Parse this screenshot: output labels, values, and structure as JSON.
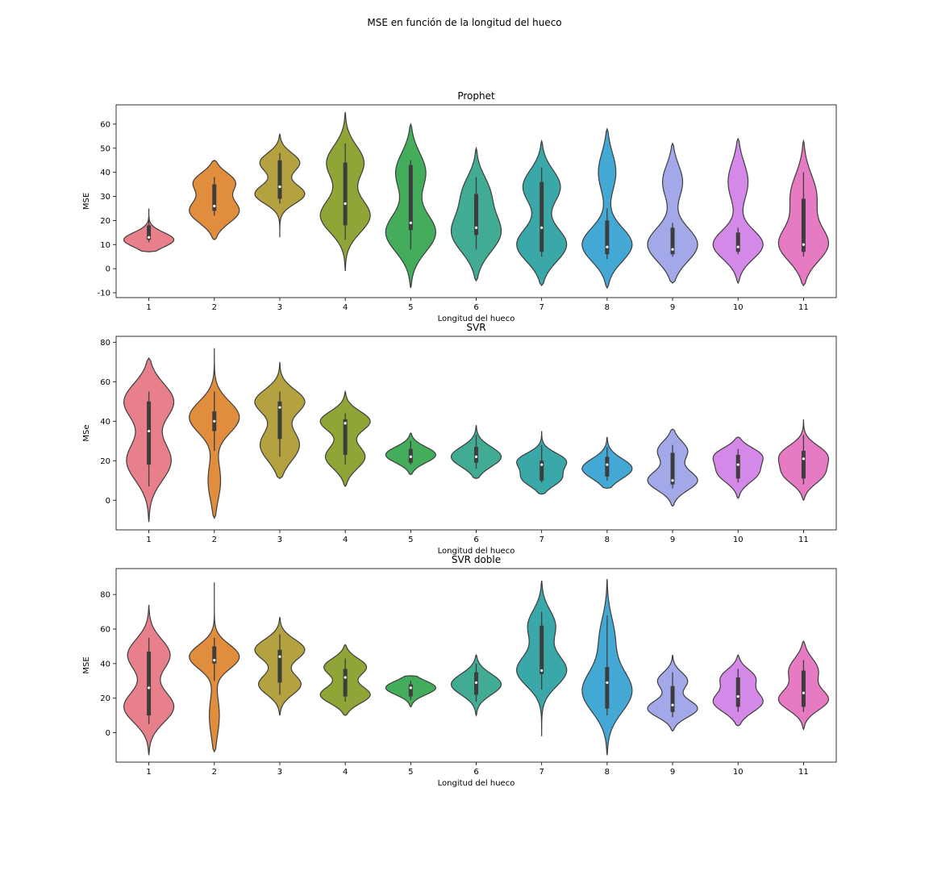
{
  "figure": {
    "suptitle": "MSE en función de la longitud del hueco"
  },
  "chart_data": [
    {
      "type": "violin",
      "title": "Prophet",
      "xlabel": "Longitud del hueco",
      "ylabel": "MSE",
      "ylim": [
        -12,
        68
      ],
      "yticks": [
        -10,
        0,
        10,
        20,
        30,
        40,
        50,
        60
      ],
      "categories": [
        "1",
        "2",
        "3",
        "4",
        "5",
        "6",
        "7",
        "8",
        "9",
        "10",
        "11"
      ],
      "colors": [
        "#e8808b",
        "#e08e3d",
        "#b3a23f",
        "#90a537",
        "#43ad5b",
        "#41ab93",
        "#3aa7a8",
        "#43a8d4",
        "#a3a8e8",
        "#d489e8",
        "#e67ac3"
      ],
      "violins": [
        {
          "min": 7,
          "max": 25,
          "q1": 12,
          "median": 13,
          "q3": 18,
          "wlo": 11,
          "whi": 21,
          "modes": [
            [
              12,
              1,
              3
            ]
          ]
        },
        {
          "min": 12,
          "max": 45,
          "q1": 24,
          "median": 26,
          "q3": 35,
          "wlo": 22,
          "whi": 38,
          "modes": [
            [
              24,
              1,
              5
            ],
            [
              36,
              0.8,
              4
            ]
          ]
        },
        {
          "min": 13,
          "max": 56,
          "q1": 29,
          "median": 34,
          "q3": 45,
          "wlo": 27,
          "whi": 48,
          "modes": [
            [
              31,
              1,
              4
            ],
            [
              44,
              0.8,
              4
            ]
          ]
        },
        {
          "min": -1,
          "max": 65,
          "q1": 18,
          "median": 27,
          "q3": 44,
          "wlo": 12,
          "whi": 52,
          "modes": [
            [
              22,
              1,
              7
            ],
            [
              44,
              0.75,
              7
            ]
          ]
        },
        {
          "min": -8,
          "max": 60,
          "q1": 16,
          "median": 19,
          "q3": 43,
          "wlo": 8,
          "whi": 45,
          "modes": [
            [
              15,
              1,
              8
            ],
            [
              40,
              0.6,
              8
            ]
          ]
        },
        {
          "min": -5,
          "max": 50,
          "q1": 14,
          "median": 17,
          "q3": 31,
          "wlo": 8,
          "whi": 38,
          "modes": [
            [
              15,
              1,
              8
            ],
            [
              32,
              0.5,
              7
            ]
          ]
        },
        {
          "min": -7,
          "max": 53,
          "q1": 7,
          "median": 17,
          "q3": 36,
          "wlo": 5,
          "whi": 42,
          "modes": [
            [
              10,
              1,
              7
            ],
            [
              34,
              0.75,
              7
            ]
          ]
        },
        {
          "min": -8,
          "max": 58,
          "q1": 6,
          "median": 9,
          "q3": 20,
          "wlo": 4,
          "whi": 25,
          "modes": [
            [
              10,
              1,
              7
            ],
            [
              40,
              0.35,
              8
            ]
          ]
        },
        {
          "min": -6,
          "max": 52,
          "q1": 6,
          "median": 8,
          "q3": 17,
          "wlo": 5,
          "whi": 19,
          "modes": [
            [
              10,
              1,
              7
            ],
            [
              36,
              0.4,
              7
            ]
          ]
        },
        {
          "min": -6,
          "max": 54,
          "q1": 7,
          "median": 9,
          "q3": 15,
          "wlo": 6,
          "whi": 17,
          "modes": [
            [
              10,
              1,
              6
            ],
            [
              36,
              0.4,
              8
            ]
          ]
        },
        {
          "min": -7,
          "max": 53,
          "q1": 7,
          "median": 10,
          "q3": 29,
          "wlo": 5,
          "whi": 40,
          "modes": [
            [
              10,
              1,
              7
            ],
            [
              30,
              0.55,
              9
            ]
          ]
        }
      ]
    },
    {
      "type": "violin",
      "title": "SVR",
      "xlabel": "Longitud del hueco",
      "ylabel": "MSe",
      "ylim": [
        -15,
        83
      ],
      "yticks": [
        0,
        20,
        40,
        60,
        80
      ],
      "categories": [
        "1",
        "2",
        "3",
        "4",
        "5",
        "6",
        "7",
        "8",
        "9",
        "10",
        "11"
      ],
      "colors": [
        "#e8808b",
        "#e08e3d",
        "#b3a23f",
        "#90a537",
        "#43ad5b",
        "#41ab93",
        "#3aa7a8",
        "#43a8d4",
        "#a3a8e8",
        "#d489e8",
        "#e67ac3"
      ],
      "violins": [
        {
          "min": -11,
          "max": 72,
          "q1": 18,
          "median": 35,
          "q3": 50,
          "wlo": 7,
          "whi": 55,
          "modes": [
            [
              20,
              0.9,
              10
            ],
            [
              50,
              1,
              9
            ]
          ]
        },
        {
          "min": -9,
          "max": 77,
          "q1": 35,
          "median": 40,
          "q3": 45,
          "wlo": 25,
          "whi": 55,
          "modes": [
            [
              42,
              1,
              8
            ],
            [
              10,
              0.25,
              10
            ]
          ]
        },
        {
          "min": 11,
          "max": 70,
          "q1": 31,
          "median": 47,
          "q3": 50,
          "wlo": 22,
          "whi": 55,
          "modes": [
            [
              28,
              0.8,
              8
            ],
            [
              50,
              1,
              6
            ]
          ]
        },
        {
          "min": 7,
          "max": 55,
          "q1": 23,
          "median": 39,
          "q3": 41,
          "wlo": 18,
          "whi": 44,
          "modes": [
            [
              22,
              0.8,
              6
            ],
            [
              40,
              1,
              5
            ]
          ]
        },
        {
          "min": 13,
          "max": 34,
          "q1": 19,
          "median": 22,
          "q3": 26,
          "wlo": 18,
          "whi": 30,
          "modes": [
            [
              23,
              1,
              4
            ]
          ]
        },
        {
          "min": 11,
          "max": 38,
          "q1": 19,
          "median": 22,
          "q3": 27,
          "wlo": 16,
          "whi": 33,
          "modes": [
            [
              22,
              1,
              5
            ]
          ]
        },
        {
          "min": 3,
          "max": 35,
          "q1": 10,
          "median": 18,
          "q3": 20,
          "wlo": 9,
          "whi": 28,
          "modes": [
            [
              11,
              0.8,
              4
            ],
            [
              20,
              1,
              4
            ]
          ]
        },
        {
          "min": 6,
          "max": 32,
          "q1": 12,
          "median": 18,
          "q3": 22,
          "wlo": 10,
          "whi": 27,
          "modes": [
            [
              16,
              1,
              5
            ]
          ]
        },
        {
          "min": -3,
          "max": 36,
          "q1": 8,
          "median": 10,
          "q3": 24,
          "wlo": 6,
          "whi": 28,
          "modes": [
            [
              10,
              1,
              5
            ],
            [
              25,
              0.6,
              5
            ]
          ]
        },
        {
          "min": 1,
          "max": 32,
          "q1": 11,
          "median": 18,
          "q3": 23,
          "wlo": 9,
          "whi": 26,
          "modes": [
            [
              14,
              0.9,
              5
            ],
            [
              23,
              0.9,
              4
            ]
          ]
        },
        {
          "min": 0,
          "max": 41,
          "q1": 11,
          "median": 21,
          "q3": 25,
          "wlo": 8,
          "whi": 33,
          "modes": [
            [
              13,
              0.85,
              5
            ],
            [
              23,
              1,
              5
            ]
          ]
        }
      ]
    },
    {
      "type": "violin",
      "title": "SVR doble",
      "xlabel": "Longitud del hueco",
      "ylabel": "MSE",
      "ylim": [
        -17,
        95
      ],
      "yticks": [
        0,
        20,
        40,
        60,
        80
      ],
      "categories": [
        "1",
        "2",
        "3",
        "4",
        "5",
        "6",
        "7",
        "8",
        "9",
        "10",
        "11"
      ],
      "colors": [
        "#e8808b",
        "#e08e3d",
        "#b3a23f",
        "#90a537",
        "#43ad5b",
        "#41ab93",
        "#3aa7a8",
        "#43a8d4",
        "#a3a8e8",
        "#d489e8",
        "#e67ac3"
      ],
      "violins": [
        {
          "min": -13,
          "max": 74,
          "q1": 10,
          "median": 26,
          "q3": 47,
          "wlo": 5,
          "whi": 55,
          "modes": [
            [
              15,
              1,
              9
            ],
            [
              45,
              0.85,
              9
            ]
          ]
        },
        {
          "min": -11,
          "max": 87,
          "q1": 40,
          "median": 42,
          "q3": 50,
          "wlo": 30,
          "whi": 55,
          "modes": [
            [
              44,
              1,
              7
            ],
            [
              10,
              0.2,
              12
            ]
          ]
        },
        {
          "min": 10,
          "max": 67,
          "q1": 29,
          "median": 44,
          "q3": 48,
          "wlo": 22,
          "whi": 57,
          "modes": [
            [
              28,
              0.85,
              6
            ],
            [
              48,
              1,
              6
            ]
          ]
        },
        {
          "min": 10,
          "max": 51,
          "q1": 21,
          "median": 32,
          "q3": 37,
          "wlo": 18,
          "whi": 43,
          "modes": [
            [
              22,
              1,
              5
            ],
            [
              38,
              0.85,
              5
            ]
          ]
        },
        {
          "min": 15,
          "max": 33,
          "q1": 21,
          "median": 26,
          "q3": 28,
          "wlo": 19,
          "whi": 30,
          "modes": [
            [
              26,
              1,
              4
            ]
          ]
        },
        {
          "min": 10,
          "max": 45,
          "q1": 22,
          "median": 29,
          "q3": 35,
          "wlo": 18,
          "whi": 40,
          "modes": [
            [
              28,
              1,
              6
            ]
          ]
        },
        {
          "min": -2,
          "max": 88,
          "q1": 34,
          "median": 36,
          "q3": 62,
          "wlo": 25,
          "whi": 70,
          "modes": [
            [
              36,
              1,
              9
            ],
            [
              62,
              0.55,
              9
            ]
          ]
        },
        {
          "min": -13,
          "max": 89,
          "q1": 14,
          "median": 29,
          "q3": 38,
          "wlo": 10,
          "whi": 68,
          "modes": [
            [
              24,
              1,
              12
            ],
            [
              55,
              0.3,
              12
            ]
          ]
        },
        {
          "min": 1,
          "max": 45,
          "q1": 12,
          "median": 16,
          "q3": 27,
          "wlo": 9,
          "whi": 35,
          "modes": [
            [
              14,
              1,
              5
            ],
            [
              30,
              0.6,
              5
            ]
          ]
        },
        {
          "min": 4,
          "max": 45,
          "q1": 15,
          "median": 21,
          "q3": 32,
          "wlo": 12,
          "whi": 37,
          "modes": [
            [
              18,
              1,
              6
            ],
            [
              32,
              0.65,
              5
            ]
          ]
        },
        {
          "min": 2,
          "max": 53,
          "q1": 15,
          "median": 23,
          "q3": 36,
          "wlo": 12,
          "whi": 42,
          "modes": [
            [
              19,
              1,
              6
            ],
            [
              36,
              0.6,
              7
            ]
          ]
        }
      ]
    }
  ]
}
